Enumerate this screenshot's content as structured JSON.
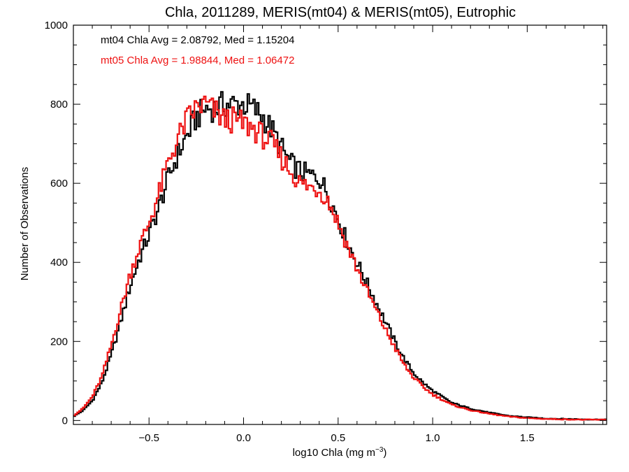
{
  "chart_data": {
    "type": "histogram-step",
    "title": "Chla, 2011289, MERIS(mt04) & MERIS(mt05), Eutrophic",
    "xlabel": "log10 Chla (mg m",
    "xlabel_sup": "−3",
    "xlabel_suffix": ")",
    "ylabel": "Number of Observations",
    "xlim": [
      -0.9,
      1.92
    ],
    "ylim": [
      -10,
      1000
    ],
    "x_ticks": [
      -0.5,
      0.0,
      0.5,
      1.0,
      1.5
    ],
    "x_tick_labels": [
      "−0.5",
      "0.0",
      "0.5",
      "1.0",
      "1.5"
    ],
    "y_ticks": [
      0,
      200,
      400,
      600,
      800,
      1000
    ],
    "y_tick_labels": [
      "0",
      "200",
      "400",
      "600",
      "800",
      "1000"
    ],
    "grid": false,
    "legend": [
      {
        "text": "mt04 Chla Avg = 2.08792, Med = 1.15204",
        "color": "#000000"
      },
      {
        "text": "mt05 Chla Avg = 1.98844, Med = 1.06472",
        "color": "#ee1111"
      }
    ],
    "series": [
      {
        "color": "#000000",
        "points": [
          [
            -0.9,
            10
          ],
          [
            -0.85,
            25
          ],
          [
            -0.8,
            50
          ],
          [
            -0.75,
            95
          ],
          [
            -0.7,
            165
          ],
          [
            -0.65,
            250
          ],
          [
            -0.6,
            340
          ],
          [
            -0.55,
            410
          ],
          [
            -0.5,
            470
          ],
          [
            -0.45,
            535
          ],
          [
            -0.4,
            610
          ],
          [
            -0.35,
            670
          ],
          [
            -0.3,
            720
          ],
          [
            -0.25,
            765
          ],
          [
            -0.2,
            790
          ],
          [
            -0.15,
            790
          ],
          [
            -0.1,
            800
          ],
          [
            -0.05,
            800
          ],
          [
            0.0,
            800
          ],
          [
            0.05,
            790
          ],
          [
            0.1,
            770
          ],
          [
            0.15,
            735
          ],
          [
            0.2,
            690
          ],
          [
            0.25,
            650
          ],
          [
            0.3,
            630
          ],
          [
            0.35,
            620
          ],
          [
            0.4,
            615
          ],
          [
            0.45,
            570
          ],
          [
            0.5,
            510
          ],
          [
            0.55,
            450
          ],
          [
            0.6,
            400
          ],
          [
            0.65,
            350
          ],
          [
            0.7,
            300
          ],
          [
            0.75,
            250
          ],
          [
            0.8,
            200
          ],
          [
            0.85,
            155
          ],
          [
            0.9,
            120
          ],
          [
            0.95,
            95
          ],
          [
            1.0,
            75
          ],
          [
            1.1,
            45
          ],
          [
            1.2,
            30
          ],
          [
            1.3,
            20
          ],
          [
            1.4,
            12
          ],
          [
            1.5,
            8
          ],
          [
            1.6,
            5
          ],
          [
            1.7,
            4
          ],
          [
            1.8,
            3
          ],
          [
            1.92,
            2
          ]
        ]
      },
      {
        "color": "#ee1111",
        "points": [
          [
            -0.9,
            12
          ],
          [
            -0.85,
            30
          ],
          [
            -0.8,
            60
          ],
          [
            -0.75,
            110
          ],
          [
            -0.7,
            190
          ],
          [
            -0.65,
            280
          ],
          [
            -0.6,
            370
          ],
          [
            -0.55,
            440
          ],
          [
            -0.5,
            500
          ],
          [
            -0.45,
            570
          ],
          [
            -0.4,
            650
          ],
          [
            -0.35,
            710
          ],
          [
            -0.3,
            760
          ],
          [
            -0.25,
            790
          ],
          [
            -0.2,
            800
          ],
          [
            -0.15,
            780
          ],
          [
            -0.1,
            760
          ],
          [
            -0.05,
            760
          ],
          [
            0.0,
            750
          ],
          [
            0.05,
            740
          ],
          [
            0.1,
            720
          ],
          [
            0.15,
            700
          ],
          [
            0.2,
            665
          ],
          [
            0.25,
            630
          ],
          [
            0.3,
            600
          ],
          [
            0.35,
            590
          ],
          [
            0.4,
            585
          ],
          [
            0.45,
            555
          ],
          [
            0.5,
            500
          ],
          [
            0.55,
            440
          ],
          [
            0.6,
            385
          ],
          [
            0.65,
            330
          ],
          [
            0.7,
            280
          ],
          [
            0.75,
            230
          ],
          [
            0.8,
            185
          ],
          [
            0.85,
            140
          ],
          [
            0.9,
            108
          ],
          [
            0.95,
            85
          ],
          [
            1.0,
            66
          ],
          [
            1.1,
            40
          ],
          [
            1.2,
            26
          ],
          [
            1.3,
            17
          ],
          [
            1.4,
            10
          ],
          [
            1.5,
            6
          ],
          [
            1.6,
            4
          ],
          [
            1.7,
            3
          ],
          [
            1.8,
            2
          ],
          [
            1.92,
            2
          ]
        ]
      }
    ]
  }
}
